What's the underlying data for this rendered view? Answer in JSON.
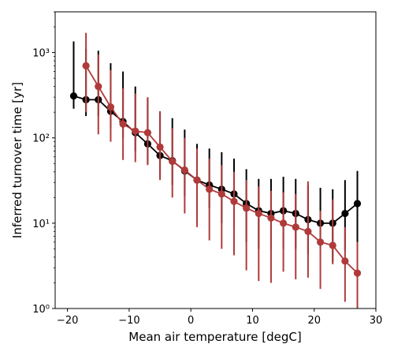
{
  "chart_data": {
    "type": "line",
    "title": "",
    "xlabel": "Mean air temperature [degC]",
    "ylabel": "Inferred turnover time [yr]",
    "xlim": [
      -22,
      30
    ],
    "ylim": [
      1,
      3000
    ],
    "yscale": "log",
    "grid": false,
    "legend": "none",
    "x_ticks": [
      -20,
      -10,
      0,
      10,
      20,
      30
    ],
    "y_ticks": [
      1,
      10,
      100,
      1000
    ],
    "x_tick_labels": [
      "−20",
      "−10",
      "0",
      "10",
      "20",
      "30"
    ],
    "y_tick_labels": [
      "10⁰",
      "10¹",
      "10²",
      "10³"
    ],
    "series": [
      {
        "color": "#000000",
        "x": [
          -19,
          -17,
          -15,
          -13,
          -11,
          -9,
          -7,
          -5,
          -3,
          -1,
          1,
          3,
          5,
          7,
          9,
          11,
          13,
          15,
          17,
          19,
          21,
          23,
          25,
          27,
          29
        ],
        "y": [
          310,
          280,
          280,
          205,
          155,
          115,
          85,
          62,
          54,
          41,
          32,
          28,
          25,
          22,
          17,
          14,
          13,
          14,
          13,
          11,
          10,
          10,
          13,
          17,
          null
        ],
        "err_low": [
          220,
          180,
          180,
          130,
          100,
          70,
          50,
          35,
          28,
          21,
          13,
          15,
          10,
          9,
          6,
          5,
          5,
          5,
          5,
          4.3,
          5,
          3.5,
          4.8,
          6,
          null
        ],
        "err_high": [
          1350,
          1100,
          1050,
          750,
          600,
          400,
          290,
          200,
          170,
          125,
          85,
          75,
          68,
          57,
          43,
          33,
          33,
          35,
          33,
          28,
          26,
          25,
          32,
          41,
          null
        ]
      },
      {
        "color": "#b03a3a",
        "x": [
          -17,
          -15,
          -13,
          -11,
          -9,
          -7,
          -5,
          -3,
          -1,
          1,
          3,
          5,
          7,
          9,
          11,
          13,
          15,
          17,
          19,
          21,
          23,
          25,
          27,
          29
        ],
        "y": [
          700,
          400,
          230,
          145,
          120,
          115,
          78,
          53,
          42,
          32,
          25,
          22,
          18,
          15,
          13,
          11.5,
          10,
          9,
          8,
          6,
          5.5,
          3.6,
          2.6,
          null
        ],
        "err_low": [
          200,
          110,
          90,
          55,
          52,
          48,
          32,
          20,
          13,
          9,
          6.3,
          5,
          4.2,
          2.8,
          2.1,
          2,
          2.7,
          2.2,
          2.3,
          1.7,
          3.3,
          1.2,
          1,
          null
        ],
        "err_high": [
          1700,
          950,
          620,
          380,
          330,
          300,
          205,
          130,
          100,
          75,
          57,
          48,
          40,
          32,
          27,
          24,
          23,
          22,
          31,
          14,
          19,
          9,
          6,
          null
        ]
      }
    ]
  }
}
